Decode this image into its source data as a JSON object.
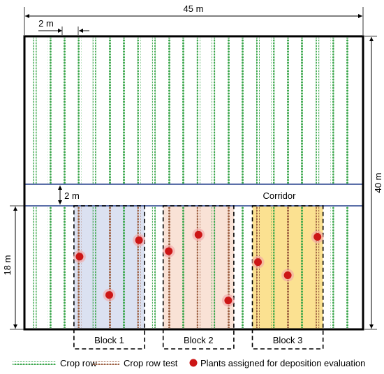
{
  "field": {
    "width_label": "45 m",
    "height_label": "40 m",
    "row_spacing_label": "2 m",
    "corridor_width_label": "2 m",
    "corridor_label": "Corridor",
    "lower_height_label": "18 m",
    "row_count": 22
  },
  "blocks": [
    {
      "label": "Block 1",
      "color": "#dbe1f1",
      "rows": [
        3,
        4,
        5,
        6,
        7
      ],
      "test_rows": [
        3,
        5,
        7
      ],
      "plants": [
        [
          3,
          0.4
        ],
        [
          5,
          0.75
        ],
        [
          7,
          0.25
        ]
      ]
    },
    {
      "label": "Block 2",
      "color": "#f9e2d6",
      "rows": [
        9,
        10,
        11,
        12,
        13
      ],
      "test_rows": [
        9,
        11,
        13
      ],
      "plants": [
        [
          9,
          0.35
        ],
        [
          11,
          0.2
        ],
        [
          13,
          0.8
        ]
      ]
    },
    {
      "label": "Block 3",
      "color": "#fbe191",
      "rows": [
        15,
        16,
        17,
        18,
        19
      ],
      "test_rows": [
        15,
        17,
        19
      ],
      "plants": [
        [
          15,
          0.45
        ],
        [
          17,
          0.57
        ],
        [
          19,
          0.22
        ]
      ]
    }
  ],
  "legend": {
    "crop_row": "Crop row",
    "crop_row_test": "Crop row test",
    "plants": "Plants assigned for deposition evaluation"
  },
  "colors": {
    "crop_row": "#3aa64b",
    "crop_row_test": "#9b5e40",
    "plant": "#cc1616",
    "corridor_border": "#5b6fa8",
    "field_border": "#000000"
  }
}
